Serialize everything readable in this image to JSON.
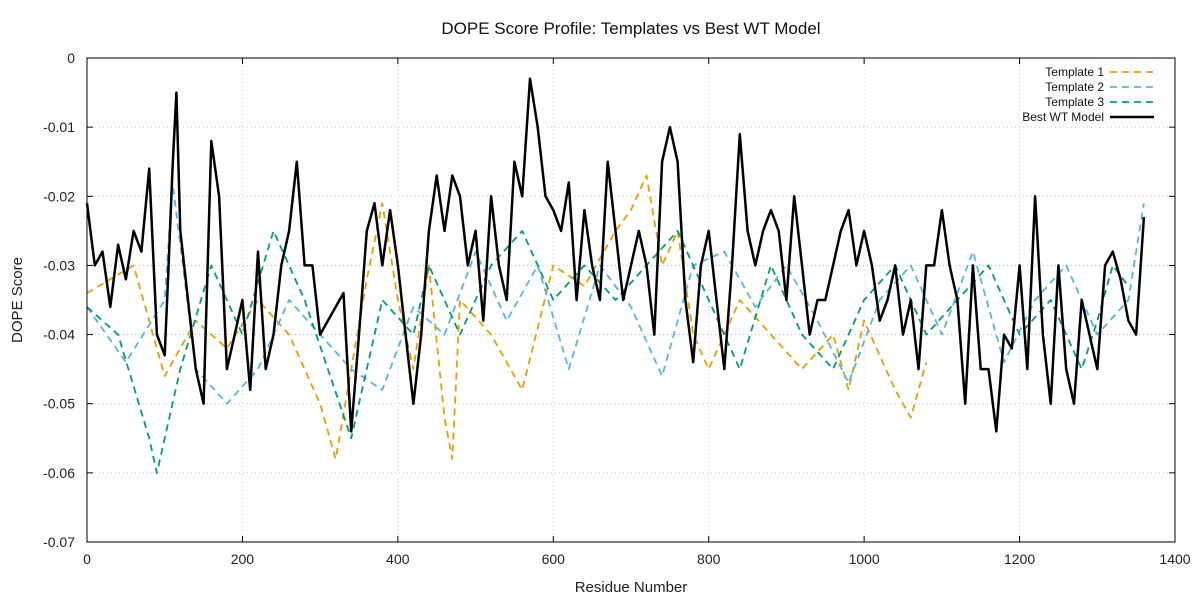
{
  "chart_data": {
    "type": "line",
    "title": "DOPE Score Profile: Templates vs Best WT Model",
    "xlabel": "Residue Number",
    "ylabel": "DOPE Score",
    "xlim": [
      0,
      1400
    ],
    "ylim": [
      -0.07,
      0
    ],
    "xticks": [
      "0",
      "200",
      "400",
      "600",
      "800",
      "1000",
      "1200",
      "1400"
    ],
    "yticks": [
      "0",
      "-0.01",
      "-0.02",
      "-0.03",
      "-0.04",
      "-0.05",
      "-0.06",
      "-0.07"
    ],
    "grid": true,
    "legend_position": "top-right",
    "series": [
      {
        "name": "Template 1",
        "color": "#E69F00",
        "style": "dashed",
        "x": [
          0,
          60,
          100,
          140,
          180,
          220,
          260,
          300,
          320,
          360,
          380,
          400,
          420,
          440,
          460,
          470,
          480,
          520,
          560,
          600,
          640,
          680,
          700,
          720,
          740,
          760,
          780,
          800,
          840,
          880,
          920,
          960,
          980,
          1000,
          1040,
          1060,
          1080
        ],
        "y": [
          -0.034,
          -0.03,
          -0.046,
          -0.038,
          -0.042,
          -0.035,
          -0.04,
          -0.05,
          -0.058,
          -0.032,
          -0.021,
          -0.035,
          -0.045,
          -0.03,
          -0.052,
          -0.058,
          -0.035,
          -0.04,
          -0.048,
          -0.03,
          -0.033,
          -0.025,
          -0.022,
          -0.017,
          -0.03,
          -0.025,
          -0.04,
          -0.045,
          -0.035,
          -0.04,
          -0.045,
          -0.04,
          -0.048,
          -0.038,
          -0.048,
          -0.052,
          -0.044
        ]
      },
      {
        "name": "Template 2",
        "color": "#56B4E9",
        "style": "dashed",
        "x": [
          0,
          50,
          100,
          110,
          140,
          180,
          220,
          260,
          300,
          340,
          380,
          420,
          460,
          500,
          540,
          580,
          620,
          660,
          700,
          740,
          780,
          820,
          860,
          900,
          940,
          980,
          1020,
          1060,
          1100,
          1140,
          1180,
          1220,
          1260,
          1300,
          1340,
          1360
        ],
        "y": [
          -0.036,
          -0.044,
          -0.035,
          -0.018,
          -0.045,
          -0.05,
          -0.045,
          -0.035,
          -0.04,
          -0.045,
          -0.048,
          -0.036,
          -0.04,
          -0.028,
          -0.038,
          -0.03,
          -0.045,
          -0.03,
          -0.036,
          -0.046,
          -0.03,
          -0.028,
          -0.036,
          -0.03,
          -0.038,
          -0.047,
          -0.035,
          -0.03,
          -0.04,
          -0.028,
          -0.044,
          -0.035,
          -0.03,
          -0.04,
          -0.035,
          -0.021
        ]
      },
      {
        "name": "Template 3",
        "color": "#009E73",
        "style": "dashed",
        "x": [
          0,
          40,
          80,
          90,
          120,
          160,
          200,
          240,
          280,
          310,
          340,
          380,
          420,
          440,
          480,
          520,
          560,
          600,
          640,
          680,
          720,
          760,
          800,
          840,
          880,
          920,
          960,
          1000,
          1040,
          1080,
          1120,
          1160,
          1200,
          1240,
          1280,
          1300,
          1320,
          1340
        ],
        "y": [
          -0.036,
          -0.04,
          -0.055,
          -0.06,
          -0.045,
          -0.03,
          -0.04,
          -0.025,
          -0.035,
          -0.045,
          -0.055,
          -0.035,
          -0.04,
          -0.03,
          -0.04,
          -0.03,
          -0.025,
          -0.035,
          -0.03,
          -0.035,
          -0.03,
          -0.025,
          -0.035,
          -0.045,
          -0.03,
          -0.04,
          -0.045,
          -0.035,
          -0.03,
          -0.04,
          -0.035,
          -0.03,
          -0.04,
          -0.035,
          -0.045,
          -0.038,
          -0.03,
          -0.033
        ]
      },
      {
        "name": "Best WT Model",
        "color": "#000000",
        "style": "solid",
        "x": [
          0,
          10,
          20,
          30,
          40,
          50,
          60,
          70,
          80,
          90,
          100,
          105,
          110,
          115,
          120,
          130,
          140,
          150,
          160,
          170,
          180,
          190,
          200,
          210,
          220,
          230,
          240,
          250,
          260,
          270,
          280,
          290,
          300,
          310,
          320,
          330,
          340,
          350,
          360,
          370,
          380,
          390,
          400,
          410,
          420,
          430,
          440,
          450,
          460,
          470,
          480,
          490,
          500,
          510,
          520,
          530,
          540,
          550,
          560,
          570,
          580,
          590,
          600,
          610,
          620,
          630,
          640,
          650,
          660,
          670,
          680,
          690,
          700,
          710,
          720,
          730,
          740,
          750,
          760,
          770,
          780,
          790,
          800,
          810,
          820,
          830,
          840,
          850,
          860,
          870,
          880,
          890,
          900,
          910,
          920,
          930,
          940,
          950,
          960,
          970,
          980,
          990,
          1000,
          1010,
          1020,
          1030,
          1040,
          1050,
          1060,
          1070,
          1080,
          1090,
          1100,
          1110,
          1120,
          1130,
          1140,
          1150,
          1160,
          1170,
          1180,
          1190,
          1200,
          1210,
          1220,
          1230,
          1240,
          1250,
          1260,
          1270,
          1280,
          1290,
          1300,
          1310,
          1320,
          1330,
          1340,
          1350,
          1360
        ],
        "y": [
          -0.021,
          -0.03,
          -0.028,
          -0.036,
          -0.027,
          -0.032,
          -0.025,
          -0.028,
          -0.016,
          -0.04,
          -0.043,
          -0.03,
          -0.016,
          -0.005,
          -0.025,
          -0.035,
          -0.045,
          -0.05,
          -0.012,
          -0.02,
          -0.045,
          -0.04,
          -0.035,
          -0.048,
          -0.028,
          -0.045,
          -0.04,
          -0.03,
          -0.025,
          -0.015,
          -0.03,
          -0.03,
          -0.04,
          -0.038,
          -0.036,
          -0.034,
          -0.054,
          -0.04,
          -0.025,
          -0.021,
          -0.03,
          -0.022,
          -0.03,
          -0.04,
          -0.05,
          -0.04,
          -0.025,
          -0.017,
          -0.025,
          -0.017,
          -0.02,
          -0.03,
          -0.025,
          -0.038,
          -0.02,
          -0.03,
          -0.035,
          -0.015,
          -0.02,
          -0.003,
          -0.01,
          -0.02,
          -0.022,
          -0.025,
          -0.018,
          -0.035,
          -0.022,
          -0.03,
          -0.035,
          -0.015,
          -0.025,
          -0.035,
          -0.03,
          -0.025,
          -0.03,
          -0.04,
          -0.015,
          -0.01,
          -0.015,
          -0.035,
          -0.044,
          -0.03,
          -0.025,
          -0.035,
          -0.045,
          -0.03,
          -0.011,
          -0.025,
          -0.03,
          -0.025,
          -0.022,
          -0.025,
          -0.035,
          -0.02,
          -0.03,
          -0.04,
          -0.035,
          -0.035,
          -0.03,
          -0.025,
          -0.022,
          -0.03,
          -0.025,
          -0.03,
          -0.038,
          -0.035,
          -0.03,
          -0.04,
          -0.035,
          -0.045,
          -0.03,
          -0.03,
          -0.022,
          -0.03,
          -0.035,
          -0.05,
          -0.03,
          -0.045,
          -0.045,
          -0.054,
          -0.04,
          -0.042,
          -0.03,
          -0.045,
          -0.02,
          -0.04,
          -0.05,
          -0.03,
          -0.045,
          -0.05,
          -0.035,
          -0.04,
          -0.045,
          -0.03,
          -0.028,
          -0.032,
          -0.038,
          -0.04,
          -0.023
        ]
      }
    ]
  }
}
